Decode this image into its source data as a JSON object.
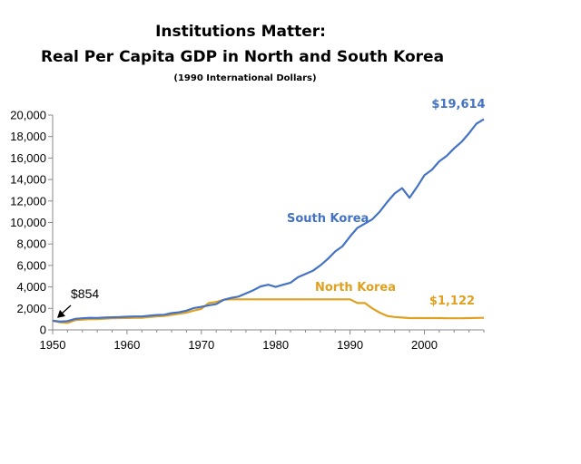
{
  "chart_data": {
    "type": "line",
    "title": "Institutions Matter:",
    "subtitle": "Real Per Capita GDP in North and South Korea",
    "note": "(1990 International Dollars)",
    "xlabel": "",
    "ylabel": "",
    "xlim": [
      1950,
      2008
    ],
    "ylim": [
      0,
      20000
    ],
    "x_ticks": [
      "1950",
      "1960",
      "1970",
      "1980",
      "1990",
      "2000"
    ],
    "x_tick_values": [
      1950,
      1960,
      1970,
      1980,
      1990,
      2000
    ],
    "y_ticks": [
      "0",
      "2,000",
      "4,000",
      "6,000",
      "8,000",
      "10,000",
      "12,000",
      "14,000",
      "16,000",
      "18,000",
      "20,000"
    ],
    "y_tick_values": [
      0,
      2000,
      4000,
      6000,
      8000,
      10000,
      12000,
      14000,
      16000,
      18000,
      20000
    ],
    "grid": false,
    "legend": "none",
    "series": [
      {
        "name": "South Korea",
        "color": "#4472C4",
        "label_value": "$19,614",
        "x": [
          1950,
          1951,
          1952,
          1953,
          1954,
          1955,
          1956,
          1957,
          1958,
          1959,
          1960,
          1961,
          1962,
          1963,
          1964,
          1965,
          1966,
          1967,
          1968,
          1969,
          1970,
          1971,
          1972,
          1973,
          1974,
          1975,
          1976,
          1977,
          1978,
          1979,
          1980,
          1981,
          1982,
          1983,
          1984,
          1985,
          1986,
          1987,
          1988,
          1989,
          1990,
          1991,
          1992,
          1993,
          1994,
          1995,
          1996,
          1997,
          1998,
          1999,
          2000,
          2001,
          2002,
          2003,
          2004,
          2005,
          2006,
          2007,
          2008
        ],
        "values": [
          854,
          780,
          820,
          1020,
          1080,
          1120,
          1110,
          1150,
          1170,
          1190,
          1226,
          1250,
          1250,
          1320,
          1380,
          1410,
          1560,
          1640,
          1790,
          2030,
          2140,
          2290,
          2400,
          2800,
          2980,
          3100,
          3400,
          3700,
          4050,
          4200,
          4000,
          4200,
          4400,
          4900,
          5200,
          5500,
          6000,
          6600,
          7300,
          7800,
          8700,
          9500,
          9900,
          10300,
          11000,
          11900,
          12700,
          13200,
          12300,
          13300,
          14400,
          14900,
          15700,
          16200,
          16900,
          17500,
          18300,
          19200,
          19614
        ]
      },
      {
        "name": "North Korea",
        "color": "#E0A020",
        "label_value": "$1,122",
        "x": [
          1950,
          1951,
          1952,
          1953,
          1954,
          1955,
          1956,
          1957,
          1958,
          1959,
          1960,
          1961,
          1962,
          1963,
          1964,
          1965,
          1966,
          1967,
          1968,
          1969,
          1970,
          1971,
          1972,
          1973,
          1974,
          1975,
          1976,
          1977,
          1978,
          1979,
          1980,
          1981,
          1982,
          1983,
          1984,
          1985,
          1986,
          1987,
          1988,
          1989,
          1990,
          1991,
          1992,
          1993,
          1994,
          1995,
          1996,
          1997,
          1998,
          1999,
          2000,
          2001,
          2002,
          2003,
          2004,
          2005,
          2006,
          2007,
          2008
        ],
        "values": [
          854,
          700,
          650,
          900,
          950,
          1000,
          1000,
          1050,
          1080,
          1100,
          1105,
          1120,
          1130,
          1200,
          1250,
          1300,
          1400,
          1500,
          1600,
          1800,
          1954,
          2500,
          2600,
          2800,
          2841,
          2841,
          2841,
          2841,
          2841,
          2841,
          2841,
          2841,
          2841,
          2841,
          2841,
          2841,
          2841,
          2841,
          2841,
          2841,
          2841,
          2500,
          2500,
          2000,
          1600,
          1300,
          1200,
          1150,
          1100,
          1100,
          1100,
          1100,
          1100,
          1080,
          1080,
          1080,
          1100,
          1110,
          1122
        ]
      }
    ],
    "annotations": [
      {
        "text": "$854",
        "x": 1950,
        "y": 854
      }
    ]
  }
}
